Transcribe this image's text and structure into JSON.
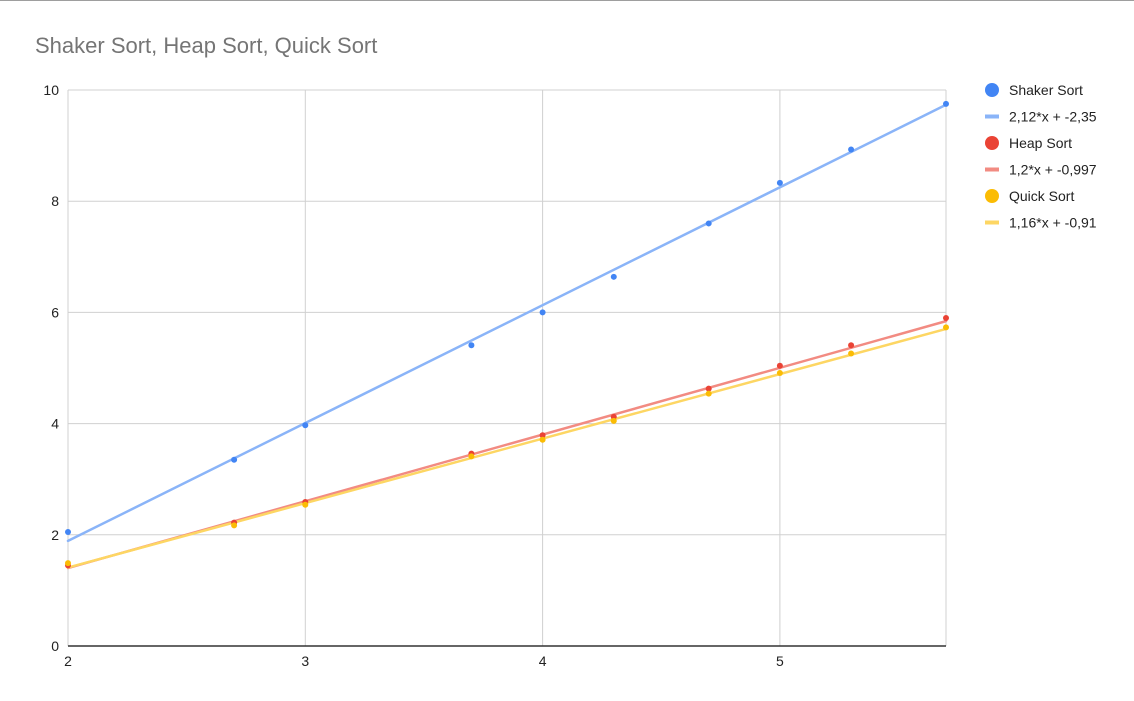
{
  "chart_data": {
    "type": "scatter",
    "title": "Shaker Sort, Heap Sort, Quick Sort",
    "xlabel": "",
    "ylabel": "",
    "xlim": [
      2,
      5.7
    ],
    "ylim": [
      0,
      10
    ],
    "x_ticks": [
      "2",
      "3",
      "4",
      "5"
    ],
    "y_ticks": [
      "0",
      "2",
      "4",
      "6",
      "8",
      "10"
    ],
    "grid": true,
    "legend_position": "right",
    "series": [
      {
        "name": "Shaker Sort",
        "color": "#4285f4",
        "points": [
          [
            2,
            2.05
          ],
          [
            2.7,
            3.35
          ],
          [
            3,
            3.97
          ],
          [
            3.7,
            5.41
          ],
          [
            4,
            6.0
          ],
          [
            4.3,
            6.64
          ],
          [
            4.7,
            7.6
          ],
          [
            5,
            8.33
          ],
          [
            5.3,
            8.93
          ],
          [
            5.7,
            9.75
          ]
        ],
        "trendline": {
          "label": "2,12*x + -2,35",
          "slope": 2.12,
          "intercept": -2.35,
          "color": "#8ab4f8"
        }
      },
      {
        "name": "Heap Sort",
        "color": "#ea4335",
        "points": [
          [
            2,
            1.45
          ],
          [
            2.7,
            2.22
          ],
          [
            3,
            2.59
          ],
          [
            3.7,
            3.46
          ],
          [
            4,
            3.79
          ],
          [
            4.3,
            4.12
          ],
          [
            4.7,
            4.63
          ],
          [
            5,
            5.04
          ],
          [
            5.3,
            5.41
          ],
          [
            5.7,
            5.9
          ]
        ],
        "trendline": {
          "label": "1,2*x + -0,997",
          "slope": 1.2,
          "intercept": -0.997,
          "color": "#f28b82"
        }
      },
      {
        "name": "Quick Sort",
        "color": "#fbbc04",
        "points": [
          [
            2,
            1.49
          ],
          [
            2.7,
            2.17
          ],
          [
            3,
            2.54
          ],
          [
            3.7,
            3.41
          ],
          [
            4,
            3.71
          ],
          [
            4.3,
            4.05
          ],
          [
            4.7,
            4.54
          ],
          [
            5,
            4.91
          ],
          [
            5.3,
            5.26
          ],
          [
            5.7,
            5.73
          ]
        ],
        "trendline": {
          "label": "1,16*x + -0,91",
          "slope": 1.16,
          "intercept": -0.91,
          "color": "#fdd663"
        }
      }
    ]
  }
}
